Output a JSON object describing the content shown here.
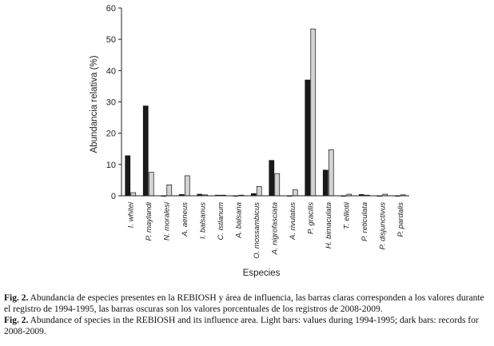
{
  "chart_data": {
    "type": "bar",
    "title": "",
    "xlabel": "Especies",
    "ylabel": "Abundancia relativa (%)",
    "ylim": [
      0,
      60
    ],
    "yticks": [
      0,
      10,
      20,
      30,
      40,
      50,
      60
    ],
    "grid": false,
    "legend": "none",
    "categories": [
      "I. whitei",
      "P. maylandi",
      "N. moralesi",
      "A. aeneus",
      "I. balsanus",
      "C. istlanum",
      "A. balsana",
      "O. mossambicus",
      "A. nigrofasciata",
      "A. rivulatus",
      "P. gracilis",
      "H. bimaculata",
      "T. elliotii",
      "P. reticulata",
      "P. disjunctivus",
      "P. pardalis"
    ],
    "series": [
      {
        "name": "",
        "color": "#1a1a1a",
        "values": [
          12.8,
          28.7,
          0,
          0.4,
          0.5,
          0.2,
          0,
          0.7,
          11.3,
          0,
          37.0,
          8.2,
          0,
          0.4,
          0,
          0
        ]
      },
      {
        "name": "",
        "color": "#d4d4d4",
        "values": [
          1.0,
          7.5,
          3.5,
          6.4,
          0.3,
          0.2,
          0.2,
          3.0,
          7.1,
          1.9,
          53.3,
          14.7,
          0.5,
          0.2,
          0.5,
          0.3
        ]
      }
    ]
  },
  "caption": {
    "es_label": "Fig. 2.",
    "es_text": " Abundancia de especies presentes en la REBIOSH y área de influencia, las barras claras corresponden a los valores durante el registro de 1994-1995, las barras oscuras son los valores porcentuales de los registros de 2008-2009.",
    "en_label": "Fig. 2.",
    "en_text": " Abundance of species in the REBIOSH and its influence area. Light bars: values during 1994-1995; dark bars: records for 2008-2009."
  }
}
